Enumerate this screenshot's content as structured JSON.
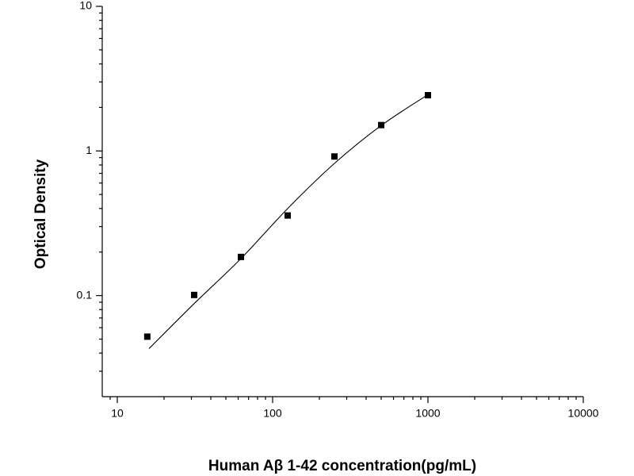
{
  "chart_data": {
    "type": "scatter",
    "x_label": "Human Aβ 1-42 concentration(pg/mL)",
    "y_label": "Optical Density",
    "x": [
      15.6,
      31.25,
      62.5,
      125,
      250,
      500,
      1000
    ],
    "values": [
      0.052,
      0.101,
      0.185,
      0.358,
      0.916,
      1.51,
      2.43
    ],
    "color": "#000000",
    "curve": {
      "x": [
        16,
        31.25,
        62.5,
        125,
        250,
        500,
        1000
      ],
      "values": [
        0.043,
        0.088,
        0.18,
        0.4,
        0.82,
        1.5,
        2.45
      ]
    },
    "xlog": true,
    "ylog": true,
    "xlim": [
      8,
      10000
    ],
    "ylim": [
      0.02,
      10
    ],
    "xticks": [
      10,
      100,
      1000,
      10000
    ],
    "yticks": [
      0.1,
      1,
      10
    ],
    "xminorticks": [
      9,
      20,
      30,
      40,
      50,
      60,
      70,
      80,
      90,
      200,
      300,
      400,
      500,
      600,
      700,
      800,
      900,
      2000,
      3000,
      4000,
      5000,
      6000,
      7000,
      8000,
      9000
    ],
    "yminorticks": [
      0.03,
      0.04,
      0.05,
      0.06,
      0.07,
      0.08,
      0.09,
      0.2,
      0.3,
      0.4,
      0.5,
      0.6,
      0.7,
      0.8,
      0.9,
      2,
      3,
      4,
      5,
      6,
      7,
      8,
      9
    ]
  }
}
